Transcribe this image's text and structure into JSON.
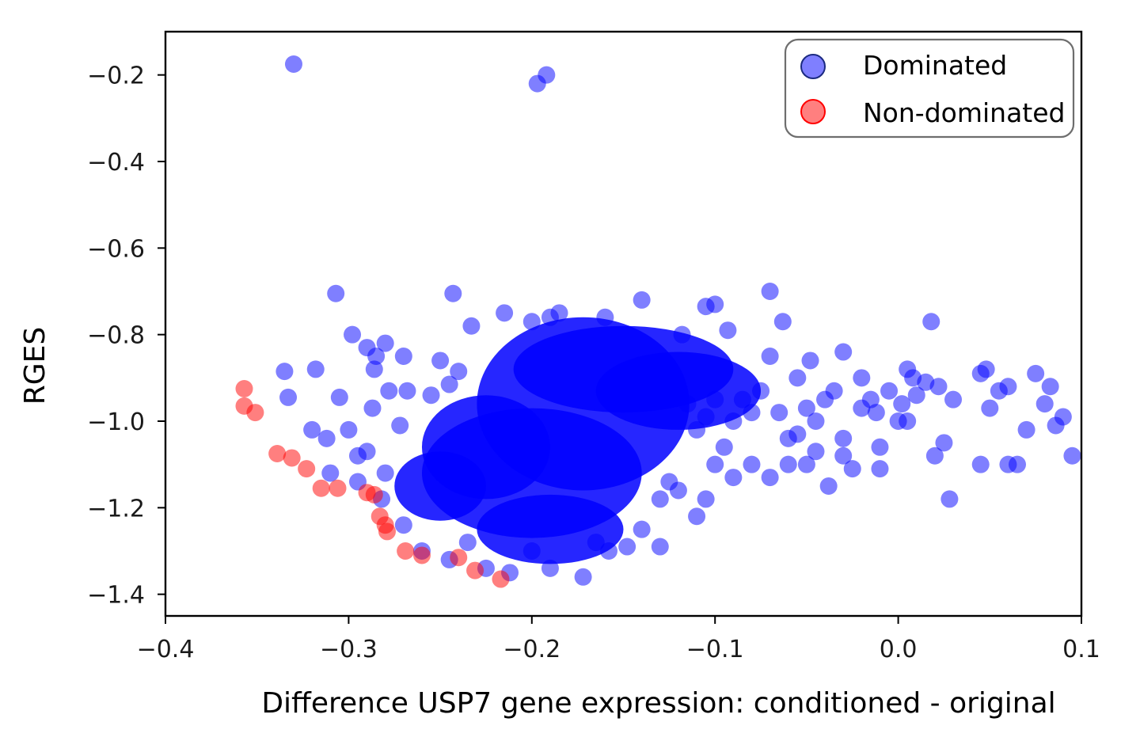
{
  "chart_data": {
    "type": "scatter",
    "title": "",
    "xlabel": "Difference USP7 gene expression: conditioned - original",
    "ylabel": "RGES",
    "xlim": [
      -0.4,
      0.1
    ],
    "ylim": [
      -1.45,
      -0.1
    ],
    "xticks": [
      -0.4,
      -0.3,
      -0.2,
      -0.1,
      0.0,
      0.1
    ],
    "xtick_labels": [
      "−0.4",
      "−0.3",
      "−0.2",
      "−0.1",
      "0.0",
      "0.1"
    ],
    "yticks": [
      -0.2,
      -0.4,
      -0.6,
      -0.8,
      -1.0,
      -1.2,
      -1.4
    ],
    "ytick_labels": [
      "−0.2",
      "−0.4",
      "−0.6",
      "−0.8",
      "−1.0",
      "−1.2",
      "−1.4"
    ],
    "grid": false,
    "legend_position": "top-right",
    "series": [
      {
        "name": "Dominated",
        "color": "#0000ff",
        "points": [
          [
            -0.33,
            -0.175
          ],
          [
            -0.197,
            -0.22
          ],
          [
            -0.192,
            -0.2
          ],
          [
            -0.307,
            -0.705
          ],
          [
            -0.243,
            -0.705
          ],
          [
            -0.298,
            -0.8
          ],
          [
            -0.233,
            -0.78
          ],
          [
            -0.335,
            -0.885
          ],
          [
            -0.333,
            -0.945
          ],
          [
            -0.318,
            -0.88
          ],
          [
            -0.305,
            -0.945
          ],
          [
            -0.29,
            -0.83
          ],
          [
            -0.285,
            -0.85
          ],
          [
            -0.28,
            -0.82
          ],
          [
            -0.27,
            -0.85
          ],
          [
            -0.286,
            -0.88
          ],
          [
            -0.278,
            -0.93
          ],
          [
            -0.268,
            -0.93
          ],
          [
            -0.255,
            -0.94
          ],
          [
            -0.25,
            -0.86
          ],
          [
            -0.245,
            -0.915
          ],
          [
            -0.24,
            -0.885
          ],
          [
            -0.32,
            -1.02
          ],
          [
            -0.312,
            -1.04
          ],
          [
            -0.3,
            -1.02
          ],
          [
            -0.295,
            -1.08
          ],
          [
            -0.29,
            -1.07
          ],
          [
            -0.287,
            -0.97
          ],
          [
            -0.28,
            -1.12
          ],
          [
            -0.272,
            -1.01
          ],
          [
            -0.31,
            -1.12
          ],
          [
            -0.295,
            -1.14
          ],
          [
            -0.282,
            -1.18
          ],
          [
            -0.27,
            -1.24
          ],
          [
            -0.26,
            -1.3
          ],
          [
            -0.245,
            -1.32
          ],
          [
            -0.235,
            -1.28
          ],
          [
            -0.225,
            -1.34
          ],
          [
            -0.212,
            -1.35
          ],
          [
            -0.2,
            -1.3
          ],
          [
            -0.19,
            -1.34
          ],
          [
            -0.172,
            -1.36
          ],
          [
            -0.165,
            -1.28
          ],
          [
            -0.158,
            -1.3
          ],
          [
            -0.148,
            -1.29
          ],
          [
            -0.14,
            -1.25
          ],
          [
            -0.13,
            -1.29
          ],
          [
            -0.215,
            -0.75
          ],
          [
            -0.2,
            -0.77
          ],
          [
            -0.19,
            -0.76
          ],
          [
            -0.185,
            -0.75
          ],
          [
            -0.16,
            -0.76
          ],
          [
            -0.14,
            -0.72
          ],
          [
            -0.118,
            -0.8
          ],
          [
            -0.105,
            -0.735
          ],
          [
            -0.1,
            -0.73
          ],
          [
            -0.093,
            -0.79
          ],
          [
            -0.07,
            -0.7
          ],
          [
            -0.063,
            -0.77
          ],
          [
            -0.07,
            -0.85
          ],
          [
            -0.055,
            -0.9
          ],
          [
            -0.048,
            -0.86
          ],
          [
            -0.03,
            -0.84
          ],
          [
            -0.02,
            -0.9
          ],
          [
            -0.015,
            -0.95
          ],
          [
            0.005,
            -0.88
          ],
          [
            0.008,
            -0.9
          ],
          [
            0.018,
            -0.77
          ],
          [
            0.022,
            -0.92
          ],
          [
            0.03,
            -0.95
          ],
          [
            0.045,
            -0.89
          ],
          [
            0.048,
            -0.88
          ],
          [
            0.05,
            -0.97
          ],
          [
            0.055,
            -0.93
          ],
          [
            0.06,
            -0.92
          ],
          [
            0.075,
            -0.89
          ],
          [
            0.08,
            -0.96
          ],
          [
            0.083,
            -0.92
          ],
          [
            0.086,
            -1.01
          ],
          [
            0.09,
            -0.99
          ],
          [
            0.095,
            -1.08
          ],
          [
            0.07,
            -1.02
          ],
          [
            0.06,
            -1.1
          ],
          [
            0.065,
            -1.1
          ],
          [
            0.045,
            -1.1
          ],
          [
            0.025,
            -1.05
          ],
          [
            0.02,
            -1.08
          ],
          [
            0.028,
            -1.18
          ],
          [
            0.0,
            -1.0
          ],
          [
            -0.01,
            -1.06
          ],
          [
            -0.01,
            -1.11
          ],
          [
            -0.025,
            -1.11
          ],
          [
            -0.03,
            -1.04
          ],
          [
            -0.03,
            -1.08
          ],
          [
            -0.038,
            -1.15
          ],
          [
            -0.045,
            -1.07
          ],
          [
            -0.05,
            -1.1
          ],
          [
            -0.055,
            -1.03
          ],
          [
            -0.06,
            -1.1
          ],
          [
            -0.06,
            -1.04
          ],
          [
            -0.065,
            -0.98
          ],
          [
            -0.07,
            -1.13
          ],
          [
            -0.08,
            -1.1
          ],
          [
            -0.09,
            -1.13
          ],
          [
            -0.095,
            -1.06
          ],
          [
            -0.1,
            -1.1
          ],
          [
            -0.105,
            -1.18
          ],
          [
            -0.11,
            -1.22
          ],
          [
            -0.12,
            -1.16
          ],
          [
            -0.13,
            -1.18
          ],
          [
            -0.125,
            -1.14
          ],
          [
            -0.04,
            -0.95
          ],
          [
            -0.035,
            -0.93
          ],
          [
            -0.02,
            -0.97
          ],
          [
            0.01,
            -0.94
          ],
          [
            -0.005,
            -0.93
          ],
          [
            -0.012,
            -0.98
          ],
          [
            0.002,
            -0.96
          ],
          [
            0.015,
            -0.91
          ],
          [
            0.005,
            -1.0
          ],
          [
            -0.045,
            -1.0
          ],
          [
            -0.05,
            -0.97
          ],
          [
            -0.075,
            -0.93
          ],
          [
            -0.08,
            -0.98
          ],
          [
            -0.085,
            -0.95
          ],
          [
            -0.09,
            -1.0
          ],
          [
            -0.1,
            -0.95
          ],
          [
            -0.105,
            -0.99
          ],
          [
            -0.11,
            -1.02
          ],
          [
            -0.115,
            -0.96
          ]
        ]
      },
      {
        "name": "Non-dominated",
        "color": "#ff0000",
        "points": [
          [
            -0.357,
            -0.925
          ],
          [
            -0.357,
            -0.965
          ],
          [
            -0.351,
            -0.98
          ],
          [
            -0.339,
            -1.075
          ],
          [
            -0.331,
            -1.085
          ],
          [
            -0.323,
            -1.11
          ],
          [
            -0.315,
            -1.155
          ],
          [
            -0.306,
            -1.155
          ],
          [
            -0.29,
            -1.165
          ],
          [
            -0.286,
            -1.17
          ],
          [
            -0.283,
            -1.22
          ],
          [
            -0.28,
            -1.24
          ],
          [
            -0.279,
            -1.255
          ],
          [
            -0.269,
            -1.3
          ],
          [
            -0.26,
            -1.31
          ],
          [
            -0.24,
            -1.315
          ],
          [
            -0.231,
            -1.345
          ],
          [
            -0.217,
            -1.365
          ]
        ]
      }
    ]
  }
}
